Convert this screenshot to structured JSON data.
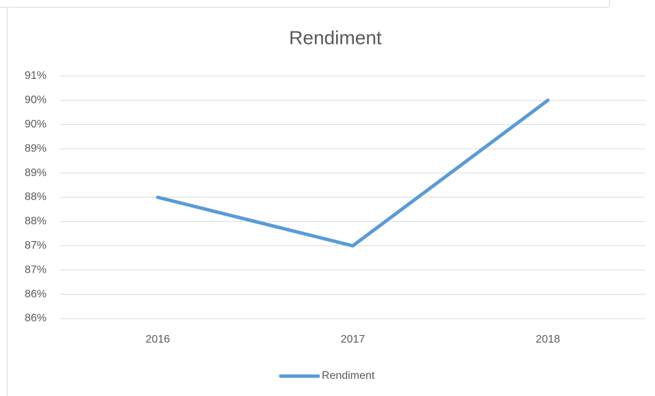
{
  "chart_data": {
    "type": "line",
    "title": "Rendiment",
    "categories": [
      "2016",
      "2017",
      "2018"
    ],
    "series": [
      {
        "name": "Rendiment",
        "color": "#5b9bd5",
        "values": [
          88,
          87,
          90
        ]
      }
    ],
    "ylim": [
      85.5,
      90.5
    ],
    "yticks": [
      {
        "value": 85.5,
        "label": "86%"
      },
      {
        "value": 86,
        "label": "86%"
      },
      {
        "value": 86.5,
        "label": "87%"
      },
      {
        "value": 87,
        "label": "87%"
      },
      {
        "value": 87.5,
        "label": "88%"
      },
      {
        "value": 88,
        "label": "88%"
      },
      {
        "value": 88.5,
        "label": "89%"
      },
      {
        "value": 89,
        "label": "89%"
      },
      {
        "value": 89.5,
        "label": "90%"
      },
      {
        "value": 90,
        "label": "90%"
      },
      {
        "value": 90.5,
        "label": "91%"
      }
    ],
    "grid": true,
    "legend": "bottom"
  }
}
